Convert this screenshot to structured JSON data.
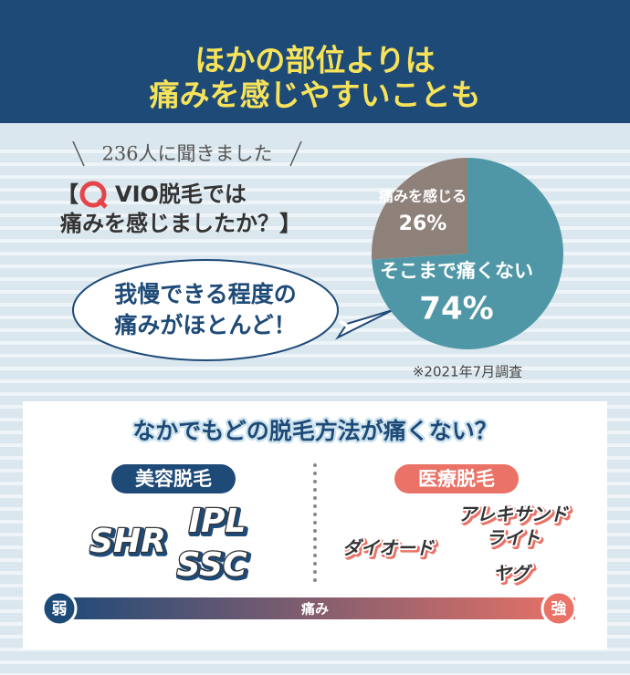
{
  "banner": {
    "title_lines": [
      "ほかの部位よりは",
      "痛みを感じやすいことも"
    ]
  },
  "survey": {
    "respondents": "236人に聞きました",
    "question_open": "【",
    "question_lines": [
      "VIO脱毛では",
      "痛みを感じましたか？】"
    ],
    "bubble_lines": [
      "我慢できる程度の",
      "痛みがほとんど！"
    ],
    "note": "※2021年7月調査"
  },
  "chart_data": {
    "type": "pie",
    "categories": [
      "痛みを感じる",
      "そこまで痛くない"
    ],
    "values": [
      26,
      74
    ],
    "value_labels": [
      "26%",
      "74%"
    ],
    "colors": [
      "#8d817a",
      "#4f97a6"
    ]
  },
  "comparison": {
    "title": "なかでもどの脱毛方法が痛くない？",
    "groups": [
      {
        "label": "美容脱毛",
        "color": "#1e4a78",
        "methods": [
          [
            "SHR"
          ],
          [
            "IPL"
          ],
          [
            "SSC"
          ]
        ]
      },
      {
        "label": "医療脱毛",
        "color": "#ea7266",
        "methods": [
          [
            "ダイオード"
          ],
          [
            "アレキサンド",
            "ライト"
          ],
          [
            "ヤグ"
          ]
        ]
      }
    ],
    "scale": {
      "low": "弱",
      "label": "痛み",
      "high": "強"
    }
  }
}
